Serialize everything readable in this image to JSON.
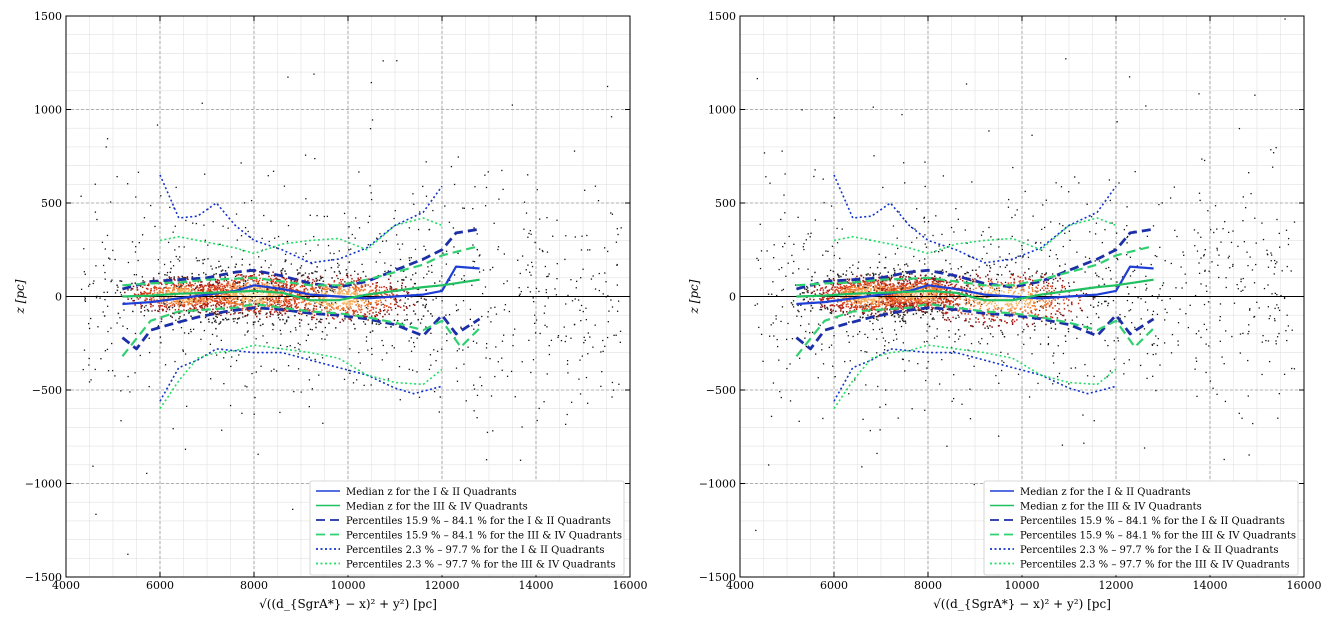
{
  "chart_data": [
    {
      "type": "scatter",
      "panel": "left",
      "title": "",
      "xlabel": "√((d_{SgrA*} − x)² + y²) [pc]",
      "ylabel": "z [pc]",
      "xlim": [
        4000,
        16000
      ],
      "ylim": [
        -1500,
        1500
      ],
      "xticks": [
        "4000",
        "6000",
        "8000",
        "10000",
        "12000",
        "14000",
        "16000"
      ],
      "yticks": [
        "−1500",
        "−1000",
        "−500",
        "0",
        "500",
        "1000",
        "1500"
      ],
      "grid": true,
      "zero_line": true,
      "legend_position": "lower-right",
      "legend": [
        {
          "label": "Median z for the I & II Quadrants",
          "style": "solid",
          "color": "#1d3fd6"
        },
        {
          "label": "Median z for the III & IV Quadrants",
          "style": "solid",
          "color": "#20c060"
        },
        {
          "label": "Percentiles 15.9 % – 84.1 % for the I & II Quadrants",
          "style": "dashed",
          "color": "#1d2fa8"
        },
        {
          "label": "Percentiles 15.9 % – 84.1 % for the III & IV Quadrants",
          "style": "dashed",
          "color": "#30d070"
        },
        {
          "label": "Percentiles 2.3 % – 97.7 % for the I & II Quadrants",
          "style": "dotted",
          "color": "#1133cc"
        },
        {
          "label": "Percentiles 2.3 % – 97.7 % for the III & IV Quadrants",
          "style": "dotted",
          "color": "#22dd66"
        }
      ],
      "density_clusters": [
        {
          "x": 6500,
          "z": 10,
          "sx": 600,
          "sz": 45,
          "n": 260
        },
        {
          "x": 8000,
          "z": 15,
          "sx": 700,
          "sz": 60,
          "n": 360
        },
        {
          "x": 9800,
          "z": -5,
          "sx": 800,
          "sz": 60,
          "n": 300
        }
      ],
      "series": [
        {
          "name": "Median z for the I & II Quadrants",
          "style": "solid",
          "color": "#1d3fd6",
          "width": 2.2,
          "x": [
            5200,
            5800,
            6400,
            7000,
            7600,
            8000,
            8600,
            9200,
            9800,
            10400,
            11000,
            11600,
            12000,
            12300,
            12800
          ],
          "y": [
            -40,
            -30,
            -10,
            10,
            30,
            60,
            40,
            10,
            0,
            -10,
            0,
            10,
            30,
            160,
            150
          ]
        },
        {
          "name": "Median z for the III & IV Quadrants",
          "style": "solid",
          "color": "#20c060",
          "width": 2.2,
          "x": [
            5200,
            5800,
            6400,
            7000,
            7600,
            8000,
            8600,
            9200,
            9800,
            10400,
            11000,
            11600,
            12000,
            12800
          ],
          "y": [
            0,
            5,
            15,
            20,
            25,
            30,
            20,
            -20,
            -20,
            10,
            30,
            50,
            60,
            90
          ]
        },
        {
          "name": "Percentiles 15.9 % – 84.1 % for the I & II Quadrants",
          "style": "dashed",
          "color": "#1d2fa8",
          "width": 2.8,
          "x": [
            5200,
            5800,
            6400,
            7000,
            7600,
            8000,
            8600,
            9200,
            9800,
            10400,
            11000,
            11600,
            12000,
            12300,
            12800
          ],
          "y": [
            40,
            80,
            90,
            100,
            130,
            140,
            110,
            70,
            50,
            80,
            140,
            200,
            250,
            340,
            360
          ]
        },
        {
          "name": "Percentiles 15.9 % – 84.1 % for the I & II Quadrants (lower)",
          "style": "dashed",
          "color": "#1d2fa8",
          "width": 2.8,
          "x": [
            5200,
            5500,
            5800,
            6200,
            6800,
            7400,
            8000,
            8600,
            9200,
            9800,
            10400,
            11000,
            11600,
            12000,
            12300,
            12800
          ],
          "y": [
            -220,
            -280,
            -180,
            -150,
            -110,
            -80,
            -60,
            -70,
            -90,
            -100,
            -120,
            -150,
            -210,
            -100,
            -200,
            -120
          ]
        },
        {
          "name": "Percentiles 15.9 % – 84.1 % for the III & IV Quadrants",
          "style": "dashed",
          "color": "#30d070",
          "width": 2.2,
          "x": [
            5200,
            5800,
            6400,
            7000,
            7600,
            8000,
            8600,
            9200,
            9800,
            10400,
            11000,
            11600,
            12000,
            12800
          ],
          "y": [
            60,
            70,
            75,
            90,
            95,
            100,
            80,
            60,
            60,
            90,
            130,
            170,
            220,
            270
          ]
        },
        {
          "name": "Percentiles 15.9 % – 84.1 % for the III & IV Quadrants (lower)",
          "style": "dashed",
          "color": "#30d070",
          "width": 2.2,
          "x": [
            5200,
            5800,
            6400,
            7000,
            7600,
            8000,
            8600,
            9200,
            9800,
            10400,
            11000,
            11600,
            12000,
            12400,
            12800
          ],
          "y": [
            -320,
            -130,
            -80,
            -70,
            -60,
            -40,
            -60,
            -80,
            -90,
            -110,
            -140,
            -180,
            -130,
            -270,
            -170
          ]
        },
        {
          "name": "Percentiles 2.3 % – 97.7 % for the I & II Quadrants",
          "style": "dotted",
          "color": "#1133cc",
          "width": 1.6,
          "x": [
            6000,
            6400,
            6800,
            7200,
            7600,
            8000,
            8600,
            9200,
            9800,
            10400,
            11000,
            11600,
            12000
          ],
          "y": [
            650,
            420,
            430,
            500,
            380,
            300,
            250,
            180,
            200,
            260,
            380,
            450,
            590
          ]
        },
        {
          "name": "Percentiles 2.3 % – 97.7 % for the I & II Quadrants (lower)",
          "style": "dotted",
          "color": "#1133cc",
          "width": 1.6,
          "x": [
            6000,
            6400,
            6800,
            7200,
            7600,
            8000,
            8600,
            9200,
            9800,
            10400,
            11000,
            11400,
            12000
          ],
          "y": [
            -560,
            -380,
            -340,
            -280,
            -290,
            -300,
            -300,
            -340,
            -380,
            -420,
            -490,
            -520,
            -480
          ]
        },
        {
          "name": "Percentiles 2.3 % – 97.7 % for the III & IV Quadrants",
          "style": "dotted",
          "color": "#22dd66",
          "width": 1.6,
          "x": [
            6000,
            6400,
            6800,
            7200,
            7600,
            8000,
            8600,
            9200,
            9800,
            10400,
            11000,
            11600,
            12000
          ],
          "y": [
            300,
            320,
            300,
            280,
            260,
            230,
            280,
            300,
            310,
            250,
            380,
            420,
            380
          ]
        },
        {
          "name": "Percentiles 2.3 % – 97.7 % for the III & IV Quadrants (lower)",
          "style": "dotted",
          "color": "#22dd66",
          "width": 1.6,
          "x": [
            6000,
            6400,
            6800,
            7200,
            7600,
            8000,
            8600,
            9200,
            9800,
            10400,
            11000,
            11600,
            12000
          ],
          "y": [
            -600,
            -450,
            -330,
            -300,
            -290,
            -260,
            -280,
            -300,
            -330,
            -420,
            -460,
            -470,
            -390
          ]
        }
      ]
    },
    {
      "type": "scatter",
      "panel": "right",
      "title": "",
      "xlabel": "√((d_{SgrA*} − x)² + y²) [pc]",
      "ylabel": "z [pc]",
      "xlim": [
        4000,
        16000
      ],
      "ylim": [
        -1500,
        1500
      ],
      "xticks": [
        "4000",
        "6000",
        "8000",
        "10000",
        "12000",
        "14000",
        "16000"
      ],
      "yticks": [
        "−1500",
        "−1000",
        "−500",
        "0",
        "500",
        "1000",
        "1500"
      ],
      "grid": true,
      "zero_line": true,
      "legend_position": "lower-right",
      "legend": [
        {
          "label": "Median z for the I & II Quadrants",
          "style": "solid",
          "color": "#1d3fd6"
        },
        {
          "label": "Median z for the III & IV Quadrants",
          "style": "solid",
          "color": "#20c060"
        },
        {
          "label": "Percentiles 15.9 % – 84.1 % for the I & II Quadrants",
          "style": "dashed",
          "color": "#1d2fa8"
        },
        {
          "label": "Percentiles 15.9 % – 84.1 % for the III & IV Quadrants",
          "style": "dashed",
          "color": "#30d070"
        },
        {
          "label": "Percentiles 2.3 % – 97.7 % for the I & II Quadrants",
          "style": "dotted",
          "color": "#1133cc"
        },
        {
          "label": "Percentiles 2.3 % – 97.7 % for the III & IV Quadrants",
          "style": "dotted",
          "color": "#22dd66"
        }
      ],
      "density_clusters": [
        {
          "x": 6800,
          "z": 10,
          "sx": 650,
          "sz": 50,
          "n": 420
        },
        {
          "x": 7800,
          "z": 20,
          "sx": 500,
          "sz": 45,
          "n": 260
        },
        {
          "x": 9600,
          "z": -10,
          "sx": 900,
          "sz": 70,
          "n": 240
        }
      ],
      "series": [
        {
          "name": "Median z for the I & II Quadrants",
          "style": "solid",
          "color": "#1d3fd6",
          "width": 2.2,
          "x": [
            5200,
            5800,
            6400,
            7000,
            7600,
            8000,
            8600,
            9200,
            9800,
            10400,
            11000,
            11600,
            12000,
            12300,
            12800
          ],
          "y": [
            -40,
            -30,
            -10,
            10,
            30,
            60,
            40,
            10,
            0,
            -10,
            0,
            10,
            30,
            160,
            150
          ]
        },
        {
          "name": "Median z for the III & IV Quadrants",
          "style": "solid",
          "color": "#20c060",
          "width": 2.2,
          "x": [
            5200,
            5800,
            6400,
            7000,
            7600,
            8000,
            8600,
            9200,
            9800,
            10400,
            11000,
            11600,
            12000,
            12800
          ],
          "y": [
            0,
            5,
            15,
            20,
            25,
            30,
            20,
            -20,
            -20,
            10,
            30,
            50,
            60,
            90
          ]
        },
        {
          "name": "Percentiles 15.9 % – 84.1 % for the I & II Quadrants",
          "style": "dashed",
          "color": "#1d2fa8",
          "width": 2.8,
          "x": [
            5200,
            5800,
            6400,
            7000,
            7600,
            8000,
            8600,
            9200,
            9800,
            10400,
            11000,
            11600,
            12000,
            12300,
            12800
          ],
          "y": [
            40,
            80,
            90,
            100,
            130,
            140,
            110,
            70,
            50,
            80,
            140,
            200,
            250,
            340,
            360
          ]
        },
        {
          "name": "Percentiles 15.9 % – 84.1 % for the I & II Quadrants (lower)",
          "style": "dashed",
          "color": "#1d2fa8",
          "width": 2.8,
          "x": [
            5200,
            5500,
            5800,
            6200,
            6800,
            7400,
            8000,
            8600,
            9200,
            9800,
            10400,
            11000,
            11600,
            12000,
            12300,
            12800
          ],
          "y": [
            -220,
            -280,
            -180,
            -150,
            -110,
            -80,
            -60,
            -70,
            -90,
            -100,
            -120,
            -150,
            -210,
            -100,
            -200,
            -120
          ]
        },
        {
          "name": "Percentiles 15.9 % – 84.1 % for the III & IV Quadrants",
          "style": "dashed",
          "color": "#30d070",
          "width": 2.2,
          "x": [
            5200,
            5800,
            6400,
            7000,
            7600,
            8000,
            8600,
            9200,
            9800,
            10400,
            11000,
            11600,
            12000,
            12800
          ],
          "y": [
            60,
            70,
            75,
            90,
            95,
            100,
            80,
            60,
            60,
            90,
            130,
            170,
            220,
            270
          ]
        },
        {
          "name": "Percentiles 15.9 % – 84.1 % for the III & IV Quadrants (lower)",
          "style": "dashed",
          "color": "#30d070",
          "width": 2.2,
          "x": [
            5200,
            5800,
            6400,
            7000,
            7600,
            8000,
            8600,
            9200,
            9800,
            10400,
            11000,
            11600,
            12000,
            12400,
            12800
          ],
          "y": [
            -320,
            -130,
            -80,
            -70,
            -60,
            -40,
            -60,
            -80,
            -90,
            -110,
            -140,
            -180,
            -130,
            -270,
            -170
          ]
        },
        {
          "name": "Percentiles 2.3 % – 97.7 % for the I & II Quadrants",
          "style": "dotted",
          "color": "#1133cc",
          "width": 1.6,
          "x": [
            6000,
            6400,
            6800,
            7200,
            7600,
            8000,
            8600,
            9200,
            9800,
            10400,
            11000,
            11600,
            12000
          ],
          "y": [
            650,
            420,
            430,
            500,
            380,
            300,
            250,
            180,
            200,
            260,
            380,
            450,
            590
          ]
        },
        {
          "name": "Percentiles 2.3 % – 97.7 % for the I & II Quadrants (lower)",
          "style": "dotted",
          "color": "#1133cc",
          "width": 1.6,
          "x": [
            6000,
            6400,
            6800,
            7200,
            7600,
            8000,
            8600,
            9200,
            9800,
            10400,
            11000,
            11400,
            12000
          ],
          "y": [
            -560,
            -380,
            -340,
            -280,
            -290,
            -300,
            -300,
            -340,
            -380,
            -420,
            -490,
            -520,
            -480
          ]
        },
        {
          "name": "Percentiles 2.3 % – 97.7 % for the III & IV Quadrants",
          "style": "dotted",
          "color": "#22dd66",
          "width": 1.6,
          "x": [
            6000,
            6400,
            6800,
            7200,
            7600,
            8000,
            8600,
            9200,
            9800,
            10400,
            11000,
            11600,
            12000
          ],
          "y": [
            300,
            320,
            300,
            280,
            260,
            230,
            280,
            300,
            310,
            250,
            380,
            420,
            380
          ]
        },
        {
          "name": "Percentiles 2.3 % – 97.7 % for the III & IV Quadrants (lower)",
          "style": "dotted",
          "color": "#22dd66",
          "width": 1.6,
          "x": [
            6000,
            6400,
            6800,
            7200,
            7600,
            8000,
            8600,
            9200,
            9800,
            10400,
            11000,
            11600,
            12000
          ],
          "y": [
            -600,
            -450,
            -330,
            -300,
            -290,
            -260,
            -280,
            -300,
            -330,
            -420,
            -460,
            -470,
            -390
          ]
        }
      ]
    }
  ]
}
